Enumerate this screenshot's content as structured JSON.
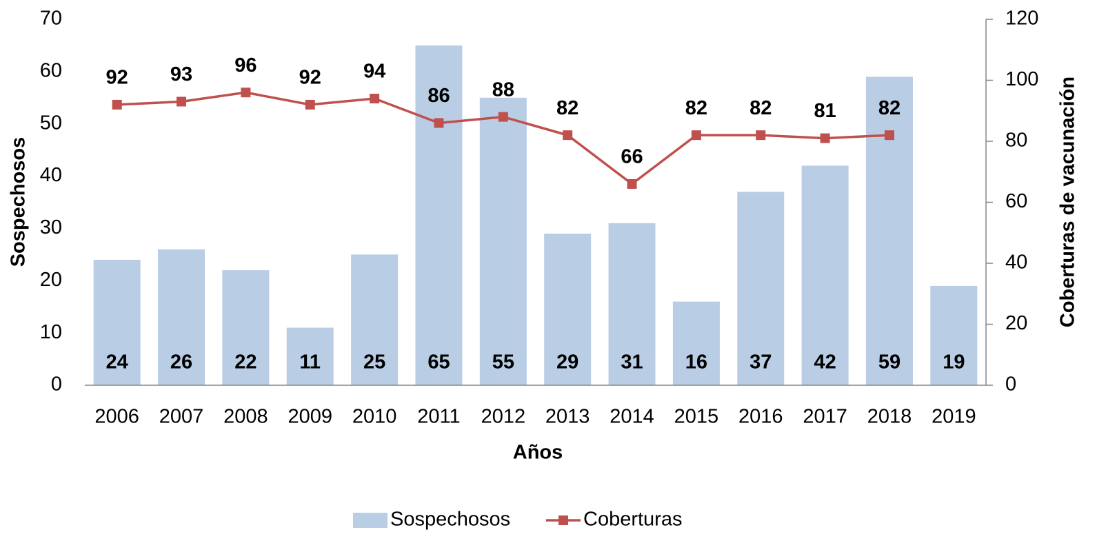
{
  "chart_data": {
    "type": "bar_line",
    "categories": [
      "2006",
      "2007",
      "2008",
      "2009",
      "2010",
      "2011",
      "2012",
      "2013",
      "2014",
      "2015",
      "2016",
      "2017",
      "2018",
      "2019"
    ],
    "series": [
      {
        "name": "Sospechosos",
        "type": "bar",
        "color": "#b9cde5",
        "values": [
          24,
          26,
          22,
          11,
          25,
          65,
          55,
          29,
          31,
          16,
          37,
          42,
          59,
          19
        ]
      },
      {
        "name": "Coberturas",
        "type": "line",
        "axis": "y2",
        "color": "#c0504d",
        "values": [
          92,
          93,
          96,
          92,
          94,
          86,
          88,
          82,
          66,
          82,
          82,
          81,
          82,
          null
        ]
      }
    ],
    "xlabel": "Años",
    "ylabel": "Sospechosos",
    "y2label": "Coberturas de vacunación",
    "ylim": [
      0,
      70
    ],
    "yticks": [
      0,
      10,
      20,
      30,
      40,
      50,
      60,
      70
    ],
    "y2lim": [
      0,
      120
    ],
    "y2ticks": [
      0,
      20,
      40,
      60,
      80,
      100,
      120
    ],
    "legend": "bottom",
    "grid": false
  }
}
